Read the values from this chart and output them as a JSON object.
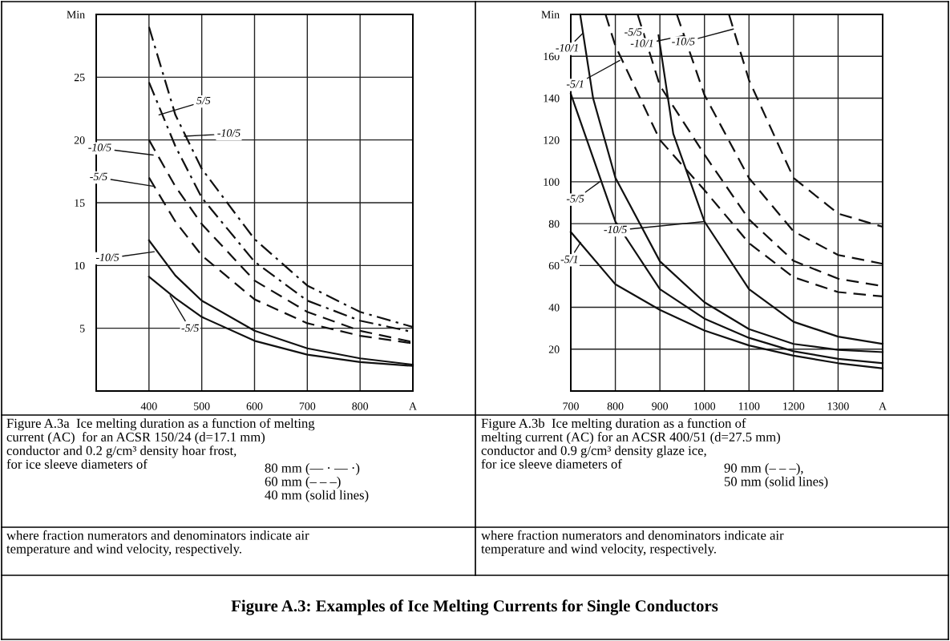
{
  "chart_data": [
    {
      "type": "line",
      "xlim": [
        300,
        900
      ],
      "ylim": [
        0,
        30
      ],
      "xticks": [
        400,
        500,
        600,
        700,
        800,
        {
          "value": 900,
          "label": "A"
        }
      ],
      "yticks": [
        5,
        10,
        15,
        20,
        25,
        {
          "value": 30,
          "label": "Min"
        }
      ],
      "grid": true,
      "marker": "none",
      "series": [
        {
          "color": "#111111",
          "line_style": "dashdot",
          "x": [
            400,
            450,
            500,
            600,
            700,
            800,
            900
          ],
          "values": [
            29,
            22,
            17.7,
            12.1,
            8.4,
            6.3,
            5.1
          ]
        },
        {
          "color": "#111111",
          "line_style": "dashdot",
          "x": [
            400,
            450,
            500,
            600,
            700,
            800,
            900
          ],
          "values": [
            24.6,
            19.5,
            15.4,
            10.3,
            7.2,
            5.6,
            4.7
          ]
        },
        {
          "color": "#111111",
          "line_style": "dashed",
          "x": [
            400,
            450,
            500,
            600,
            700,
            800,
            900
          ],
          "values": [
            20,
            16.3,
            13.3,
            8.8,
            6.3,
            4.8,
            3.9
          ]
        },
        {
          "color": "#111111",
          "line_style": "dashed",
          "x": [
            400,
            450,
            500,
            600,
            700,
            800,
            900
          ],
          "values": [
            17,
            13.5,
            10.8,
            7.3,
            5.4,
            4.4,
            3.8
          ]
        },
        {
          "color": "#111111",
          "line_style": "solid",
          "x": [
            400,
            450,
            500,
            600,
            700,
            800,
            900
          ],
          "values": [
            12,
            9.2,
            7.2,
            4.8,
            3.4,
            2.6,
            2.1
          ]
        },
        {
          "color": "#111111",
          "line_style": "solid",
          "x": [
            400,
            450,
            500,
            600,
            700,
            800,
            900
          ],
          "values": [
            9.1,
            7.4,
            5.9,
            4.0,
            2.9,
            2.3,
            2.0
          ]
        }
      ],
      "annotations": [
        {
          "text": "5/5",
          "x": 419,
          "y": 22
        },
        {
          "text": "-10/5",
          "x": 467,
          "y": 20.3
        },
        {
          "text": "-10/5",
          "x": 408,
          "y": 18.8
        },
        {
          "text": "-5/5",
          "x": 410,
          "y": 16.3
        },
        {
          "text": "-10/5",
          "x": 410,
          "y": 11.1
        },
        {
          "text": "-5/5",
          "x": 440,
          "y": 7.6
        },
        "Figure A.3a  Ice melting duration as a function of melting\ncurrent (AC)  for an ACSR 150/24 (d=17.1 mm)\nconductor and 0.2 g/cm³ density hoar frost,\nfor ice sleeve diameters of",
        "80 mm (— · — ·)\n60 mm (– – –)\n40 mm (solid lines)",
        "where fraction numerators and denominators indicate air\ntemperature and wind velocity, respectively.",
        "Figure A.3: Examples of Ice Melting Currents for Single Conductors"
      ]
    },
    {
      "type": "line",
      "xlim": [
        700,
        1400
      ],
      "ylim": [
        0,
        180
      ],
      "xticks": [
        700,
        800,
        900,
        1000,
        1100,
        1200,
        1300,
        {
          "value": 1400,
          "label": "A"
        }
      ],
      "yticks": [
        20,
        40,
        60,
        80,
        100,
        120,
        140,
        160,
        {
          "value": 180,
          "label": "Min"
        }
      ],
      "grid": true,
      "marker": "none",
      "series": [
        {
          "color": "#111111",
          "line_style": "solid",
          "x": [
            700,
            800,
            900,
            1000,
            1100,
            1200,
            1300,
            1400
          ],
          "values": [
            76,
            51,
            38.8,
            28.9,
            21.8,
            16.9,
            13.3,
            10.8
          ]
        },
        {
          "color": "#111111",
          "line_style": "solid",
          "x": [
            700,
            800,
            900,
            1000,
            1100,
            1200,
            1300,
            1400
          ],
          "values": [
            142,
            81,
            48.7,
            34.6,
            25.4,
            19,
            15.4,
            13.3
          ]
        },
        {
          "color": "#111111",
          "line_style": "solid",
          "x": [
            721,
            750,
            800,
            900,
            1000,
            1100,
            1200,
            1300,
            1400
          ],
          "values": [
            180,
            140,
            102,
            62,
            42.4,
            29.6,
            22.5,
            19.7,
            18.6
          ]
        },
        {
          "color": "#111111",
          "line_style": "solid",
          "x": [
            897,
            930,
            1000,
            1100,
            1200,
            1300,
            1400
          ],
          "values": [
            170,
            123,
            81,
            48.7,
            33.1,
            26,
            22.5
          ]
        },
        {
          "color": "#111111",
          "line_style": "dashed",
          "x": [
            778,
            800,
            900,
            1000,
            1100,
            1200,
            1300,
            1400
          ],
          "values": [
            180,
            165,
            120,
            96,
            70.7,
            54.4,
            47.3,
            45.2
          ]
        },
        {
          "color": "#111111",
          "line_style": "dashed",
          "x": [
            850,
            900,
            1000,
            1100,
            1200,
            1300,
            1400
          ],
          "values": [
            180,
            146,
            113,
            82,
            62.2,
            53.7,
            50.1
          ]
        },
        {
          "color": "#111111",
          "line_style": "dashed",
          "x": [
            938,
            1000,
            1100,
            1200,
            1300,
            1400
          ],
          "values": [
            180,
            141.5,
            101.8,
            76.3,
            65,
            60.8
          ]
        },
        {
          "color": "#111111",
          "line_style": "dashed",
          "x": [
            1055,
            1100,
            1200,
            1300,
            1400
          ],
          "values": [
            180,
            148.6,
            101.8,
            84.8,
            78.5
          ]
        }
      ],
      "annotations": [
        {
          "text": "-10/1",
          "x": 727,
          "y": 171
        },
        {
          "text": "-5/1",
          "x": 810,
          "y": 158
        },
        {
          "text": "-5/5",
          "x": 865,
          "y": 168
        },
        {
          "text": "-10/1",
          "x": 955,
          "y": 170
        },
        {
          "text": "-10/5",
          "x": 1065,
          "y": 173
        },
        {
          "text": "-5/5",
          "x": 765,
          "y": 100
        },
        {
          "text": "-10/5",
          "x": 1000,
          "y": 81
        },
        {
          "text": "-5/1",
          "x": 722,
          "y": 71
        },
        "Figure A.3b  Ice melting duration as a function of\nmelting current (AC) for an ACSR 400/51 (d=27.5 mm)\nconductor and 0.9 g/cm³ density glaze ice,\nfor ice sleeve diameters of",
        "90 mm (– – –),\n50 mm (solid lines)",
        "where fraction numerators and denominators indicate air\ntemperature and wind velocity, respectively."
      ]
    }
  ]
}
